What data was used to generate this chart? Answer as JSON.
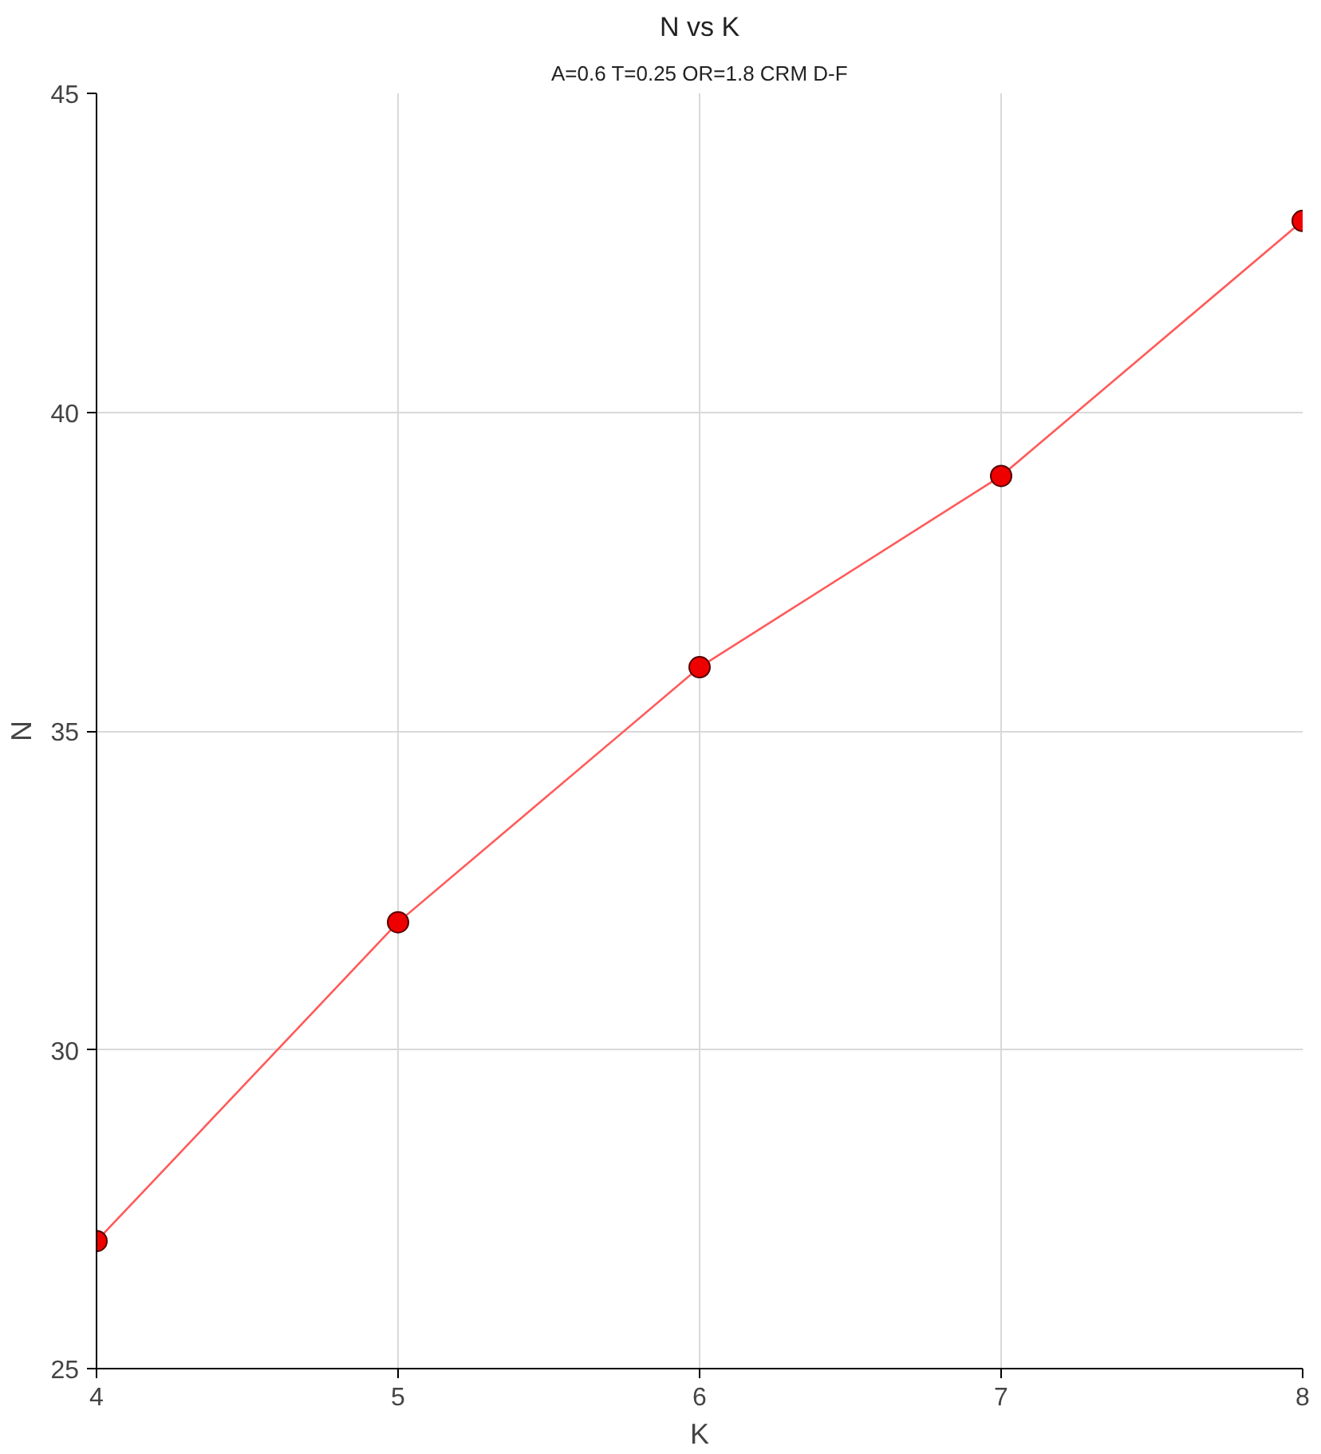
{
  "chart_data": {
    "type": "line",
    "title": "N vs K",
    "subtitle": "A=0.6 T=0.25 OR=1.8 CRM D-F",
    "xlabel": "K",
    "ylabel": "N",
    "x": [
      4,
      5,
      6,
      7,
      8
    ],
    "series": [
      {
        "color": "#ff5a5a",
        "values": [
          27,
          32,
          36,
          39,
          43
        ]
      }
    ],
    "xlim": [
      4,
      8
    ],
    "ylim": [
      25,
      45
    ],
    "xticks": [
      4,
      5,
      6,
      7,
      8
    ],
    "yticks": [
      25,
      30,
      35,
      40,
      45
    ],
    "grid": true,
    "marker": "circle",
    "line_style": "solid"
  }
}
